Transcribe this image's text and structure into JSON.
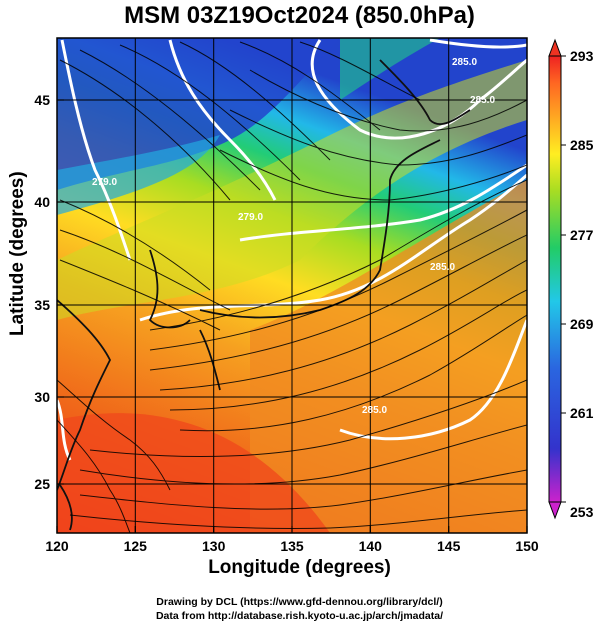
{
  "title": "MSM 03Z19Oct2024 (850.0hPa)",
  "axes": {
    "xlabel": "Longitude (degrees)",
    "ylabel": "Latitude  (degrees)",
    "xticks": [
      "120",
      "125",
      "130",
      "135",
      "140",
      "145",
      "150"
    ],
    "yticks": [
      "45",
      "40",
      "35",
      "30",
      "25"
    ],
    "xlim": [
      120,
      150
    ],
    "ylim": [
      22.4,
      47.6
    ]
  },
  "colorbar": {
    "labels": [
      "293",
      "285",
      "277",
      "269",
      "261",
      "253"
    ],
    "range": [
      253,
      293
    ],
    "colors": [
      "#cc22cc",
      "#3333cc",
      "#2a66e0",
      "#22c8e8",
      "#22cc66",
      "#aadd22",
      "#ffee22",
      "#ffaa22",
      "#ff6622",
      "#ee2222"
    ]
  },
  "contour_labels": [
    "279.0",
    "279.0",
    "285.0",
    "285.0",
    "285.0",
    "285.0"
  ],
  "credits": {
    "line1": "Drawing by DCL (https://www.gfd-dennou.org/library/dcl/)",
    "line2": "Data from http://database.rish.kyoto-u.ac.jp/arch/jmadata/"
  }
}
